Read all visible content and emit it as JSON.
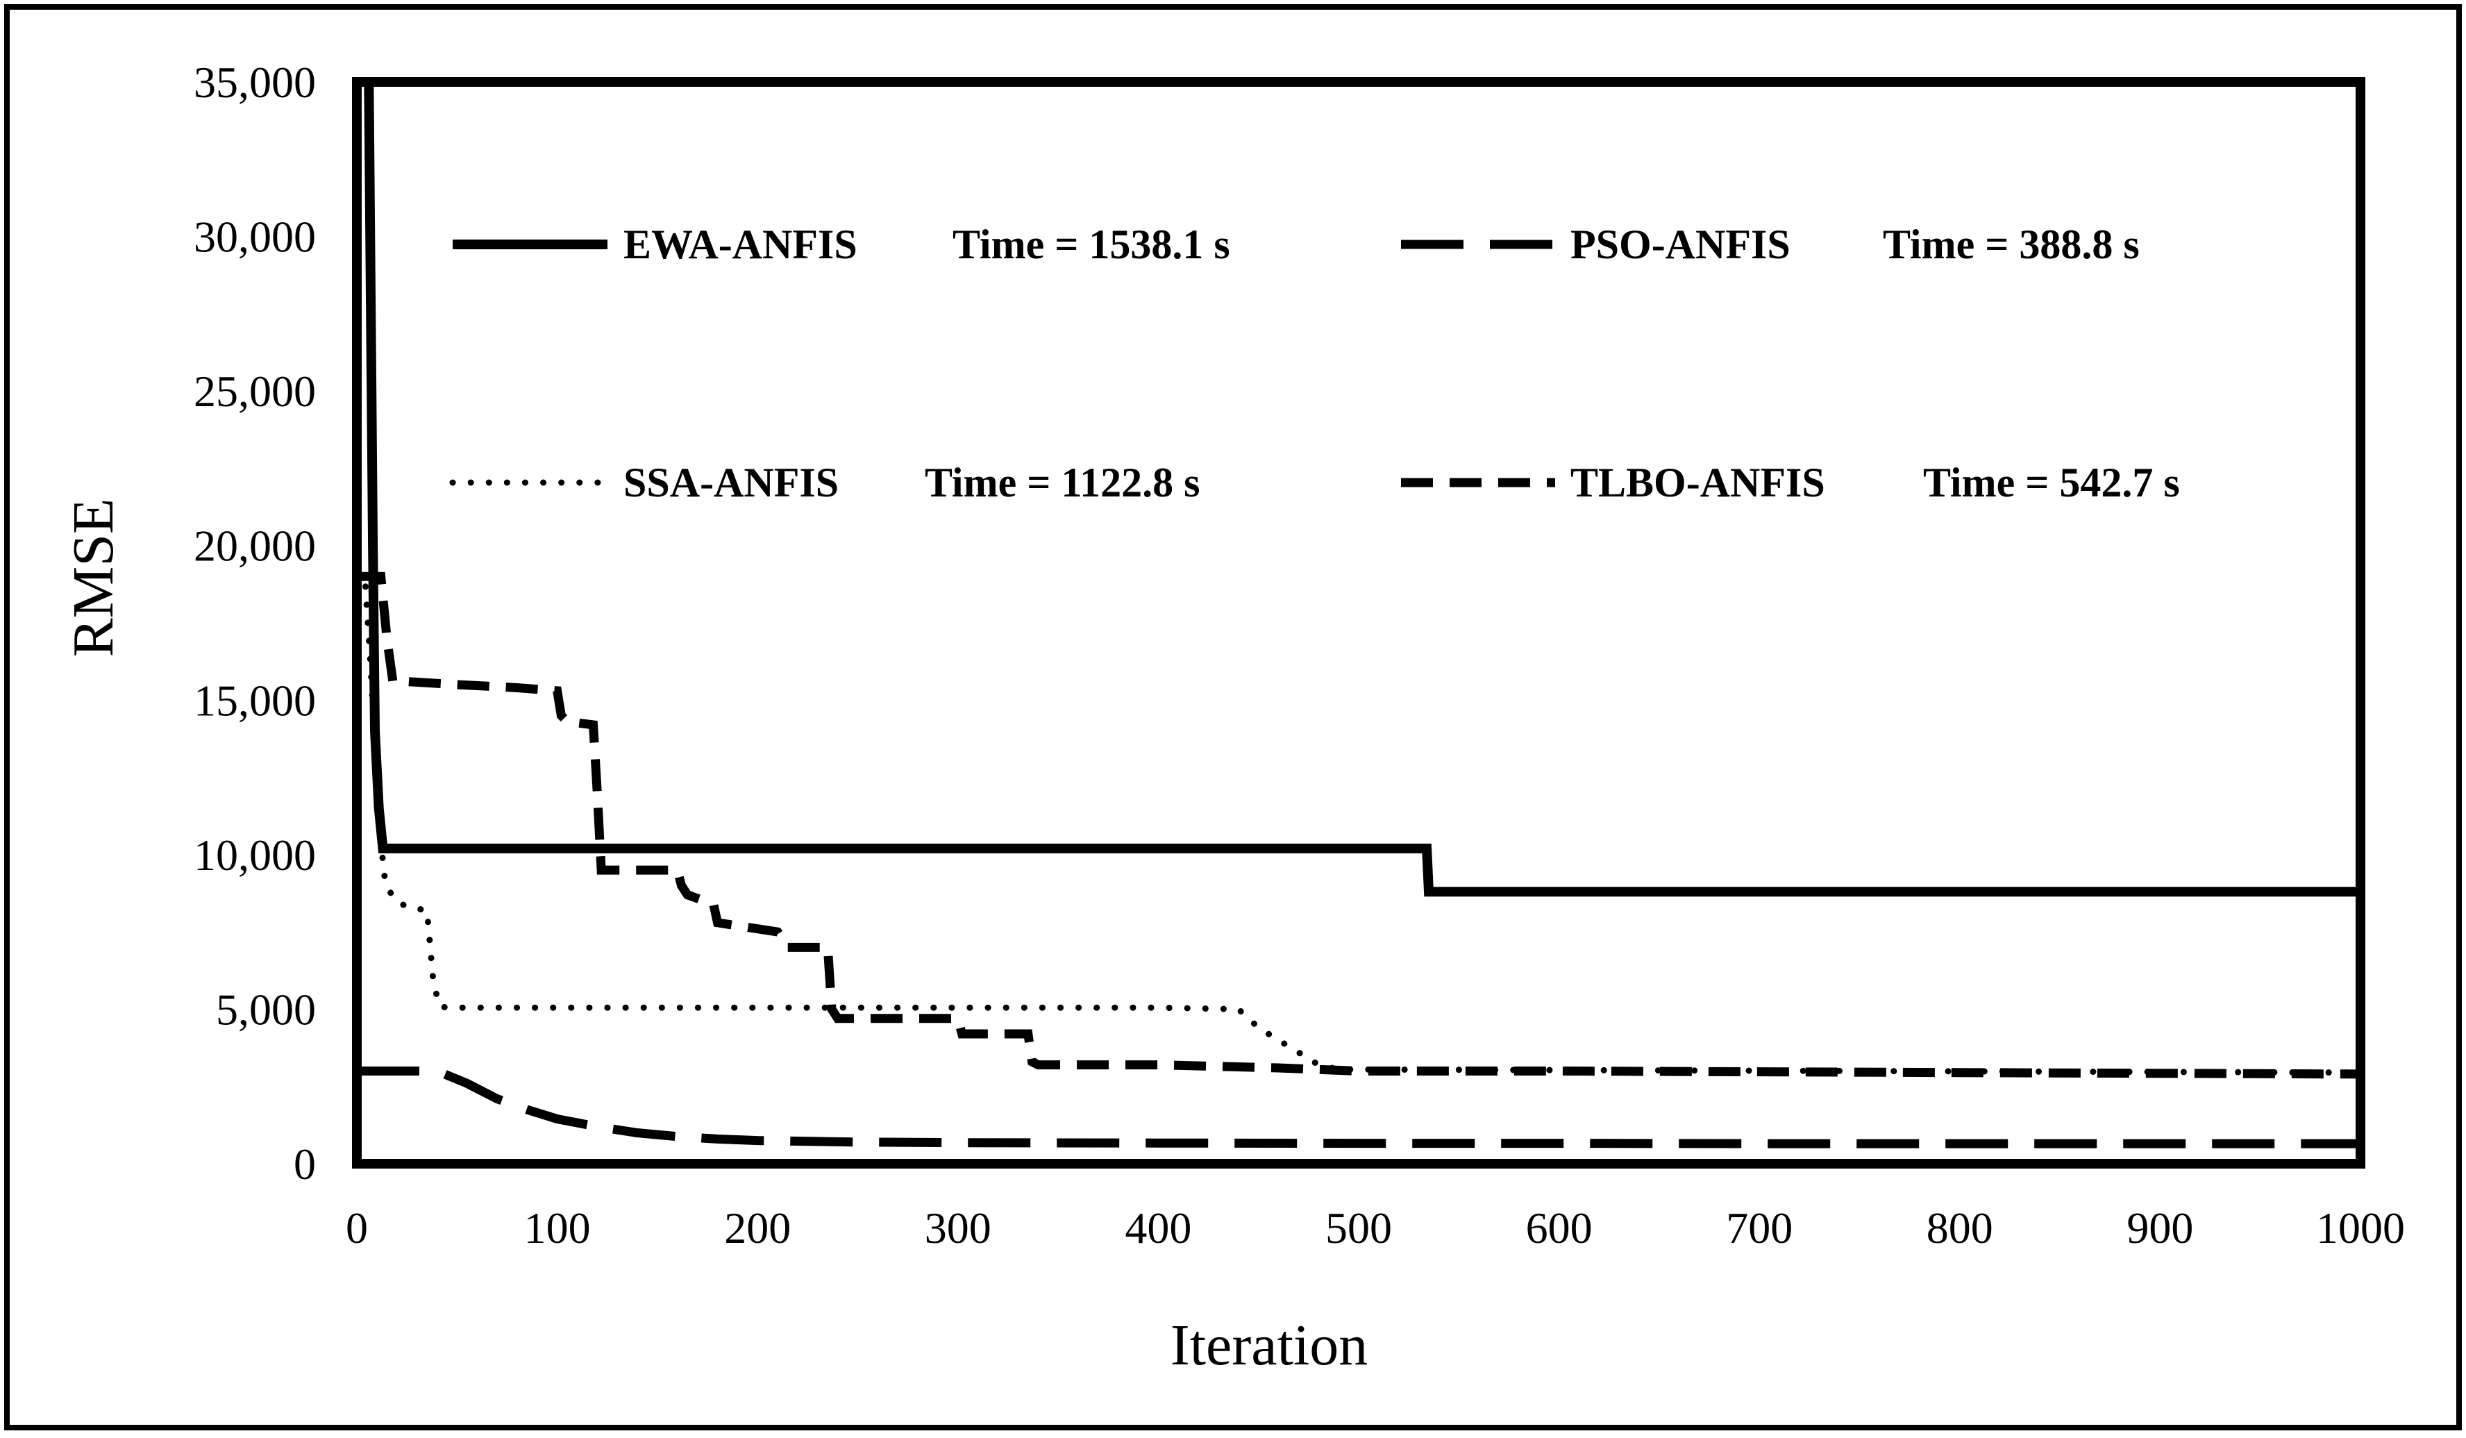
{
  "chart_data": {
    "type": "line",
    "title": "",
    "xlabel": "Iteration",
    "ylabel": "RMSE",
    "xlim": [
      0,
      1000
    ],
    "ylim": [
      0,
      35000
    ],
    "xticks": [
      0,
      100,
      200,
      300,
      400,
      500,
      600,
      700,
      800,
      900,
      1000
    ],
    "xtick_labels": [
      "0",
      "100",
      "200",
      "300",
      "400",
      "500",
      "600",
      "700",
      "800",
      "900",
      "1000"
    ],
    "yticks": [
      0,
      5000,
      10000,
      15000,
      20000,
      25000,
      30000,
      35000
    ],
    "ytick_labels": [
      "0",
      "5,000",
      "10,000",
      "15,000",
      "20,000",
      "25,000",
      "30,000",
      "35,000"
    ],
    "grid": false,
    "legend_position": "inside-top",
    "series": [
      {
        "name": "EWA-ANFIS",
        "time_label": "Time = 1538.1 s",
        "style": "solid",
        "color": "#000000",
        "x": [
          0,
          6,
          8,
          9,
          11,
          13,
          534,
          535,
          1000
        ],
        "y": [
          35000,
          35000,
          20000,
          14000,
          11500,
          10200,
          10200,
          8800,
          8800
        ]
      },
      {
        "name": "PSO-ANFIS",
        "time_label": "Time = 388.8 s",
        "style": "long-dash",
        "color": "#000000",
        "x": [
          0,
          40,
          55,
          70,
          85,
          100,
          120,
          140,
          160,
          180,
          200,
          250,
          300,
          400,
          500,
          600,
          700,
          800,
          900,
          1000
        ],
        "y": [
          3000,
          3000,
          2600,
          2100,
          1750,
          1450,
          1200,
          1000,
          880,
          800,
          750,
          700,
          680,
          670,
          660,
          660,
          650,
          650,
          650,
          650
        ]
      },
      {
        "name": "SSA-ANFIS",
        "time_label": "Time = 1122.8 s",
        "style": "dotted",
        "color": "#000000",
        "x": [
          0,
          4,
          7,
          9,
          11,
          14,
          18,
          25,
          35,
          38,
          41,
          45,
          200,
          400,
          440,
          450,
          460,
          470,
          480,
          490,
          1000
        ],
        "y": [
          19000,
          19000,
          16000,
          13500,
          11000,
          9200,
          8600,
          8300,
          8200,
          6000,
          5100,
          5050,
          5050,
          5050,
          5000,
          4400,
          4000,
          3600,
          3200,
          3050,
          2950
        ]
      },
      {
        "name": "TLBO-ANFIS",
        "time_label": "Time = 542.7 s",
        "style": "dashed",
        "color": "#000000",
        "x": [
          0,
          4,
          12,
          15,
          18,
          25,
          50,
          80,
          100,
          102,
          105,
          118,
          120,
          122,
          125,
          140,
          160,
          162,
          165,
          178,
          180,
          200,
          210,
          215,
          235,
          237,
          240,
          300,
          302,
          335,
          337,
          340,
          400,
          460,
          500,
          600,
          800,
          1000
        ],
        "y": [
          19000,
          19000,
          19000,
          17000,
          15600,
          15600,
          15500,
          15400,
          15300,
          14500,
          14300,
          14200,
          12000,
          9500,
          9500,
          9500,
          9500,
          9000,
          8700,
          8400,
          7800,
          7600,
          7500,
          7000,
          7000,
          5000,
          4700,
          4700,
          4200,
          4200,
          3300,
          3200,
          3200,
          3100,
          3000,
          3000,
          2950,
          2900
        ]
      }
    ]
  }
}
